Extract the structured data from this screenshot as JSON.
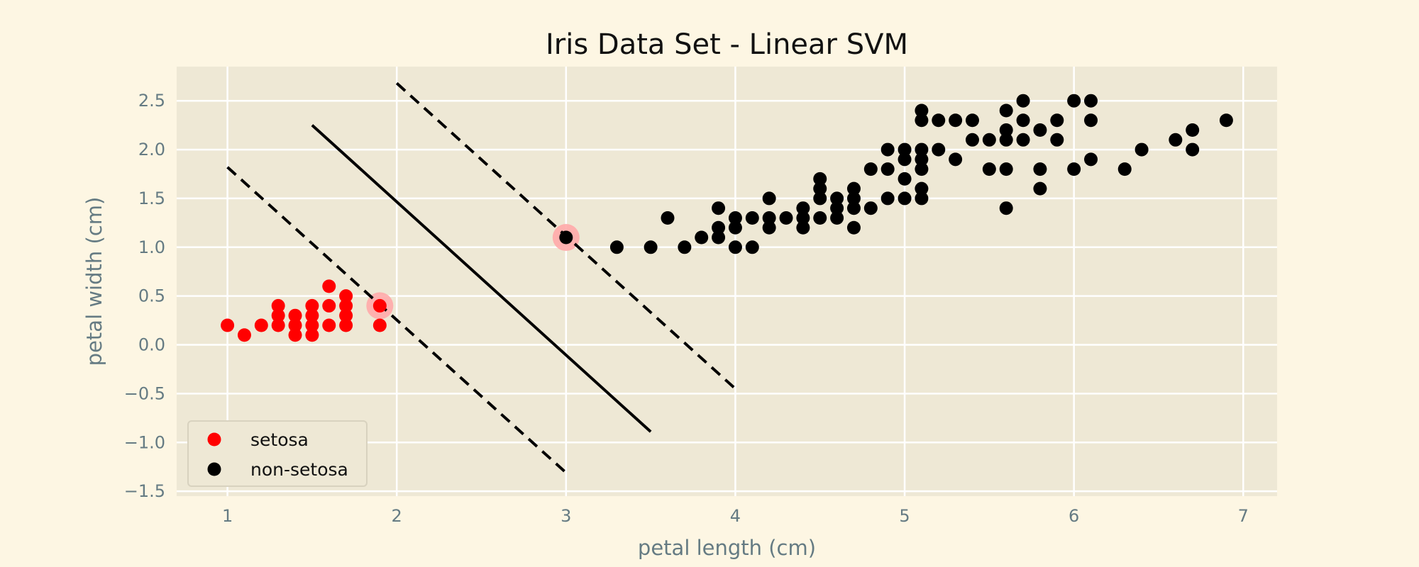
{
  "chart_data": {
    "type": "scatter",
    "title": "Iris Data Set - Linear SVM",
    "xlabel": "petal length (cm)",
    "ylabel": "petal width (cm)",
    "xlim": [
      0.7,
      7.2
    ],
    "ylim": [
      -1.55,
      2.85
    ],
    "xticks": [
      1,
      2,
      3,
      4,
      5,
      6,
      7
    ],
    "xtick_labels": [
      "1",
      "2",
      "3",
      "4",
      "5",
      "6",
      "7"
    ],
    "yticks": [
      -1.5,
      -1.0,
      -0.5,
      0.0,
      0.5,
      1.0,
      1.5,
      2.0,
      2.5
    ],
    "ytick_labels": [
      "−1.5",
      "−1.0",
      "−0.5",
      "0.0",
      "0.5",
      "1.0",
      "1.5",
      "2.0",
      "2.5"
    ],
    "grid": true,
    "legend_position": "lower-left",
    "colors": {
      "background": "#fdf6e3",
      "plot_area": "#eee8d5",
      "grid": "#ffffff",
      "setosa": "#ff0000",
      "non_setosa": "#000000",
      "support_vector_highlight": "#ffaaaa",
      "line": "#000000"
    },
    "series": [
      {
        "name": "setosa",
        "color": "#ff0000",
        "points": [
          [
            1.0,
            0.2
          ],
          [
            1.1,
            0.1
          ],
          [
            1.2,
            0.2
          ],
          [
            1.3,
            0.2
          ],
          [
            1.3,
            0.3
          ],
          [
            1.3,
            0.4
          ],
          [
            1.4,
            0.1
          ],
          [
            1.4,
            0.2
          ],
          [
            1.4,
            0.3
          ],
          [
            1.5,
            0.1
          ],
          [
            1.5,
            0.2
          ],
          [
            1.5,
            0.3
          ],
          [
            1.5,
            0.4
          ],
          [
            1.6,
            0.2
          ],
          [
            1.6,
            0.4
          ],
          [
            1.6,
            0.6
          ],
          [
            1.7,
            0.2
          ],
          [
            1.7,
            0.3
          ],
          [
            1.7,
            0.4
          ],
          [
            1.7,
            0.5
          ],
          [
            1.9,
            0.2
          ],
          [
            1.9,
            0.4
          ]
        ]
      },
      {
        "name": "non-setosa",
        "color": "#000000",
        "points": [
          [
            3.0,
            1.1
          ],
          [
            3.3,
            1.0
          ],
          [
            3.5,
            1.0
          ],
          [
            3.6,
            1.3
          ],
          [
            3.7,
            1.0
          ],
          [
            3.8,
            1.1
          ],
          [
            3.9,
            1.1
          ],
          [
            3.9,
            1.2
          ],
          [
            3.9,
            1.4
          ],
          [
            4.0,
            1.0
          ],
          [
            4.0,
            1.2
          ],
          [
            4.0,
            1.3
          ],
          [
            4.1,
            1.0
          ],
          [
            4.1,
            1.3
          ],
          [
            4.2,
            1.2
          ],
          [
            4.2,
            1.3
          ],
          [
            4.2,
            1.5
          ],
          [
            4.3,
            1.3
          ],
          [
            4.4,
            1.2
          ],
          [
            4.4,
            1.3
          ],
          [
            4.4,
            1.4
          ],
          [
            4.5,
            1.3
          ],
          [
            4.5,
            1.5
          ],
          [
            4.5,
            1.6
          ],
          [
            4.5,
            1.7
          ],
          [
            4.6,
            1.3
          ],
          [
            4.6,
            1.4
          ],
          [
            4.6,
            1.5
          ],
          [
            4.7,
            1.2
          ],
          [
            4.7,
            1.4
          ],
          [
            4.7,
            1.5
          ],
          [
            4.7,
            1.6
          ],
          [
            4.8,
            1.4
          ],
          [
            4.8,
            1.8
          ],
          [
            4.9,
            1.5
          ],
          [
            4.9,
            1.8
          ],
          [
            4.9,
            2.0
          ],
          [
            5.0,
            1.5
          ],
          [
            5.0,
            1.7
          ],
          [
            5.0,
            1.9
          ],
          [
            5.0,
            2.0
          ],
          [
            5.1,
            1.5
          ],
          [
            5.1,
            1.6
          ],
          [
            5.1,
            1.8
          ],
          [
            5.1,
            1.9
          ],
          [
            5.1,
            2.0
          ],
          [
            5.1,
            2.3
          ],
          [
            5.1,
            2.4
          ],
          [
            5.2,
            2.0
          ],
          [
            5.2,
            2.3
          ],
          [
            5.3,
            1.9
          ],
          [
            5.3,
            2.3
          ],
          [
            5.4,
            2.1
          ],
          [
            5.4,
            2.3
          ],
          [
            5.5,
            1.8
          ],
          [
            5.5,
            2.1
          ],
          [
            5.6,
            1.4
          ],
          [
            5.6,
            1.8
          ],
          [
            5.6,
            2.1
          ],
          [
            5.6,
            2.2
          ],
          [
            5.6,
            2.4
          ],
          [
            5.7,
            2.1
          ],
          [
            5.7,
            2.3
          ],
          [
            5.7,
            2.5
          ],
          [
            5.8,
            1.6
          ],
          [
            5.8,
            1.8
          ],
          [
            5.8,
            2.2
          ],
          [
            5.9,
            2.1
          ],
          [
            5.9,
            2.3
          ],
          [
            6.0,
            1.8
          ],
          [
            6.0,
            2.5
          ],
          [
            6.1,
            1.9
          ],
          [
            6.1,
            2.3
          ],
          [
            6.1,
            2.5
          ],
          [
            6.3,
            1.8
          ],
          [
            6.4,
            2.0
          ],
          [
            6.6,
            2.1
          ],
          [
            6.7,
            2.0
          ],
          [
            6.7,
            2.2
          ],
          [
            6.9,
            2.3
          ]
        ]
      }
    ],
    "support_vectors": [
      [
        1.9,
        0.4
      ],
      [
        3.0,
        1.1
      ]
    ],
    "lines": [
      {
        "name": "decision-boundary",
        "style": "solid",
        "points": [
          [
            1.5,
            2.25
          ],
          [
            3.5,
            -0.89
          ]
        ]
      },
      {
        "name": "margin-lower",
        "style": "dashed",
        "points": [
          [
            1.0,
            1.82
          ],
          [
            3.0,
            -1.31
          ]
        ]
      },
      {
        "name": "margin-upper",
        "style": "dashed",
        "points": [
          [
            2.0,
            2.68
          ],
          [
            4.0,
            -0.45
          ]
        ]
      }
    ]
  }
}
